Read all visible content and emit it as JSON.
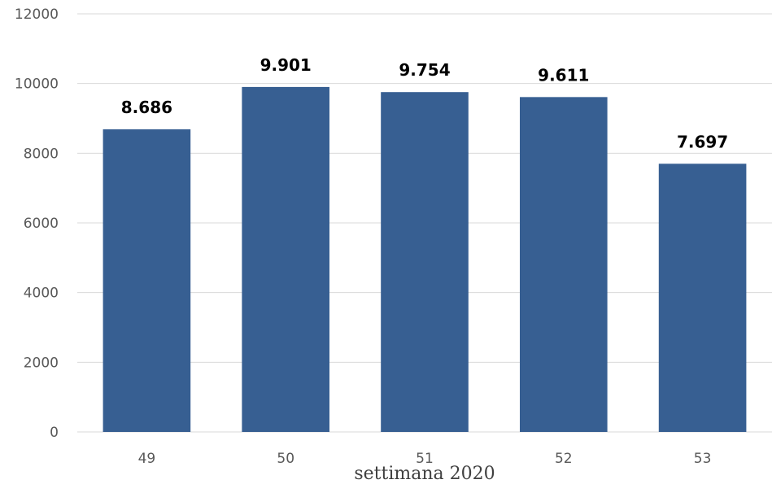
{
  "chart_data": {
    "type": "bar",
    "categories": [
      "49",
      "50",
      "51",
      "52",
      "53"
    ],
    "values": [
      8686,
      9901,
      9754,
      9611,
      7697
    ],
    "data_labels": [
      "8.686",
      "9.901",
      "9.754",
      "9.611",
      "7.697"
    ],
    "title": "",
    "xlabel": "settimana 2020",
    "ylabel": "",
    "ylim": [
      0,
      12000
    ],
    "yticks": [
      0,
      2000,
      4000,
      6000,
      8000,
      10000,
      12000
    ],
    "ytick_labels": [
      "0",
      "2000",
      "4000",
      "6000",
      "8000",
      "10000",
      "12000"
    ],
    "grid": true,
    "legend": "none",
    "bar_color": "#375f92"
  }
}
